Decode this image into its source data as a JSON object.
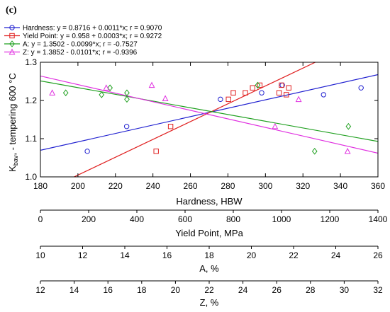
{
  "panel_label": "(c)",
  "chart_data": {
    "type": "scatter",
    "ylabel_main": "K",
    "ylabel_sub": "bav",
    "ylabel_rest": ", - tempering 600 °C",
    "ylim": [
      1.0,
      1.3
    ],
    "y_ticks": [
      "1.0",
      "1.1",
      "1.2",
      "1.3"
    ],
    "y_tick_values": [
      1.0,
      1.1,
      1.2,
      1.3
    ],
    "grid": false,
    "legend_position": "top-left",
    "axes": [
      {
        "key": "hb",
        "label": "Hardness, HBW",
        "min": 180,
        "max": 360,
        "ticks": [
          "180",
          "200",
          "220",
          "240",
          "260",
          "280",
          "300",
          "320",
          "340",
          "360"
        ],
        "tick_values": [
          180,
          200,
          220,
          240,
          260,
          280,
          300,
          320,
          340,
          360
        ]
      },
      {
        "key": "yp",
        "label": "Yield Point, MPa",
        "min": 0,
        "max": 1400,
        "ticks": [
          "0",
          "200",
          "400",
          "600",
          "800",
          "1000",
          "1200",
          "1400"
        ],
        "tick_values": [
          0,
          200,
          400,
          600,
          800,
          1000,
          1200,
          1400
        ]
      },
      {
        "key": "a",
        "label": "A, %",
        "min": 10,
        "max": 26,
        "ticks": [
          "10",
          "12",
          "14",
          "16",
          "18",
          "20",
          "22",
          "24",
          "26"
        ],
        "tick_values": [
          10,
          12,
          14,
          16,
          18,
          20,
          22,
          24,
          26
        ]
      },
      {
        "key": "z",
        "label": "Z, %",
        "min": 12,
        "max": 32,
        "ticks": [
          "12",
          "14",
          "16",
          "18",
          "20",
          "22",
          "24",
          "26",
          "28",
          "30",
          "32"
        ],
        "tick_values": [
          12,
          14,
          16,
          18,
          20,
          22,
          24,
          26,
          28,
          30,
          32
        ]
      }
    ],
    "series": [
      {
        "name": "Hardness:  y = 0.8716 + 0.0011*x; r = 0.9070",
        "axis": "hb",
        "marker": "circle",
        "color": "#2020d0",
        "fit": {
          "intercept": 0.8716,
          "slope": 0.0011
        },
        "points": [
          [
            205,
            1.067
          ],
          [
            226,
            1.132
          ],
          [
            276,
            1.203
          ],
          [
            298,
            1.22
          ],
          [
            309,
            1.24
          ],
          [
            331,
            1.215
          ],
          [
            351,
            1.233
          ]
        ]
      },
      {
        "name": "Yield Point:  y = 0.958 + 0.0003*x; r = 0.9272",
        "axis": "yp",
        "marker": "square",
        "color": "#e02020",
        "fit": {
          "intercept": 0.958,
          "slope": 0.0003
        },
        "points": [
          [
            480,
            1.067
          ],
          [
            540,
            1.132
          ],
          [
            780,
            1.203
          ],
          [
            800,
            1.22
          ],
          [
            850,
            1.22
          ],
          [
            880,
            1.233
          ],
          [
            910,
            1.24
          ],
          [
            990,
            1.22
          ],
          [
            1000,
            1.24
          ],
          [
            1020,
            1.215
          ],
          [
            1030,
            1.233
          ]
        ]
      },
      {
        "name": "A:  y = 1.3502 - 0.0099*x; r = -0.7527",
        "axis": "a",
        "marker": "diamond",
        "color": "#20a020",
        "fit": {
          "intercept": 1.3502,
          "slope": -0.0099
        },
        "points": [
          [
            11.2,
            1.22
          ],
          [
            12.9,
            1.215
          ],
          [
            13.3,
            1.233
          ],
          [
            14.1,
            1.203
          ],
          [
            14.1,
            1.22
          ],
          [
            20.3,
            1.24
          ],
          [
            23.0,
            1.067
          ],
          [
            24.6,
            1.132
          ]
        ]
      },
      {
        "name": "Z:  y = 1.3852 - 0.0101*x; r = -0.9396",
        "axis": "z",
        "marker": "triangle",
        "color": "#e030e0",
        "fit": {
          "intercept": 1.3852,
          "slope": -0.0101
        },
        "points": [
          [
            12.7,
            1.22
          ],
          [
            15.9,
            1.233
          ],
          [
            18.6,
            1.24
          ],
          [
            19.4,
            1.205
          ],
          [
            25.9,
            1.132
          ],
          [
            27.3,
            1.203
          ],
          [
            30.2,
            1.067
          ]
        ]
      }
    ]
  }
}
